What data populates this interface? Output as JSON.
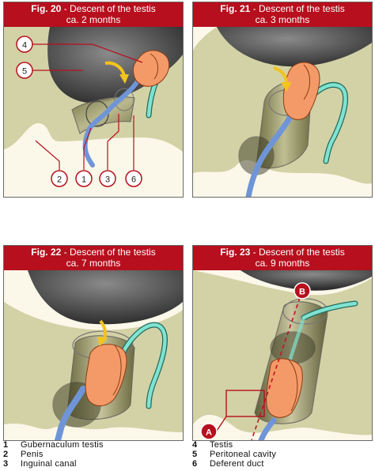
{
  "figures": [
    {
      "number": "Fig. 20",
      "title": " - Descent of the testis",
      "age": "ca. 2 months"
    },
    {
      "number": "Fig. 21",
      "title": " - Descent of the testis",
      "age": "ca. 3 months"
    },
    {
      "number": "Fig. 22",
      "title": " - Descent of the testis",
      "age": "ca. 7 months"
    },
    {
      "number": "Fig. 23",
      "title": " - Descent of the testis",
      "age": "ca. 9 months"
    }
  ],
  "callouts": {
    "fig20": [
      "1",
      "2",
      "3",
      "4",
      "5",
      "6"
    ],
    "fig23": [
      "A",
      "B"
    ]
  },
  "legend": [
    {
      "num": "1",
      "label": "Gubernaculum testis"
    },
    {
      "num": "2",
      "label": "Penis"
    },
    {
      "num": "3",
      "label": "Inguinal canal"
    },
    {
      "num": "4",
      "label": "Testis"
    },
    {
      "num": "5",
      "label": "Peritoneal cavity"
    },
    {
      "num": "6",
      "label": "Deferent duct"
    }
  ],
  "colors": {
    "header": "#b70f1d",
    "body_wall": "#d3d2a6",
    "peritoneal_cavity": "#fbf8ea",
    "organ_shade": "#3f3f3f",
    "testis": "#f49a68",
    "gubernaculum": "#6f95d8",
    "deferent_duct": "#7fe3cf",
    "arrow": "#f3c31e",
    "callout": "#b70f1d"
  }
}
